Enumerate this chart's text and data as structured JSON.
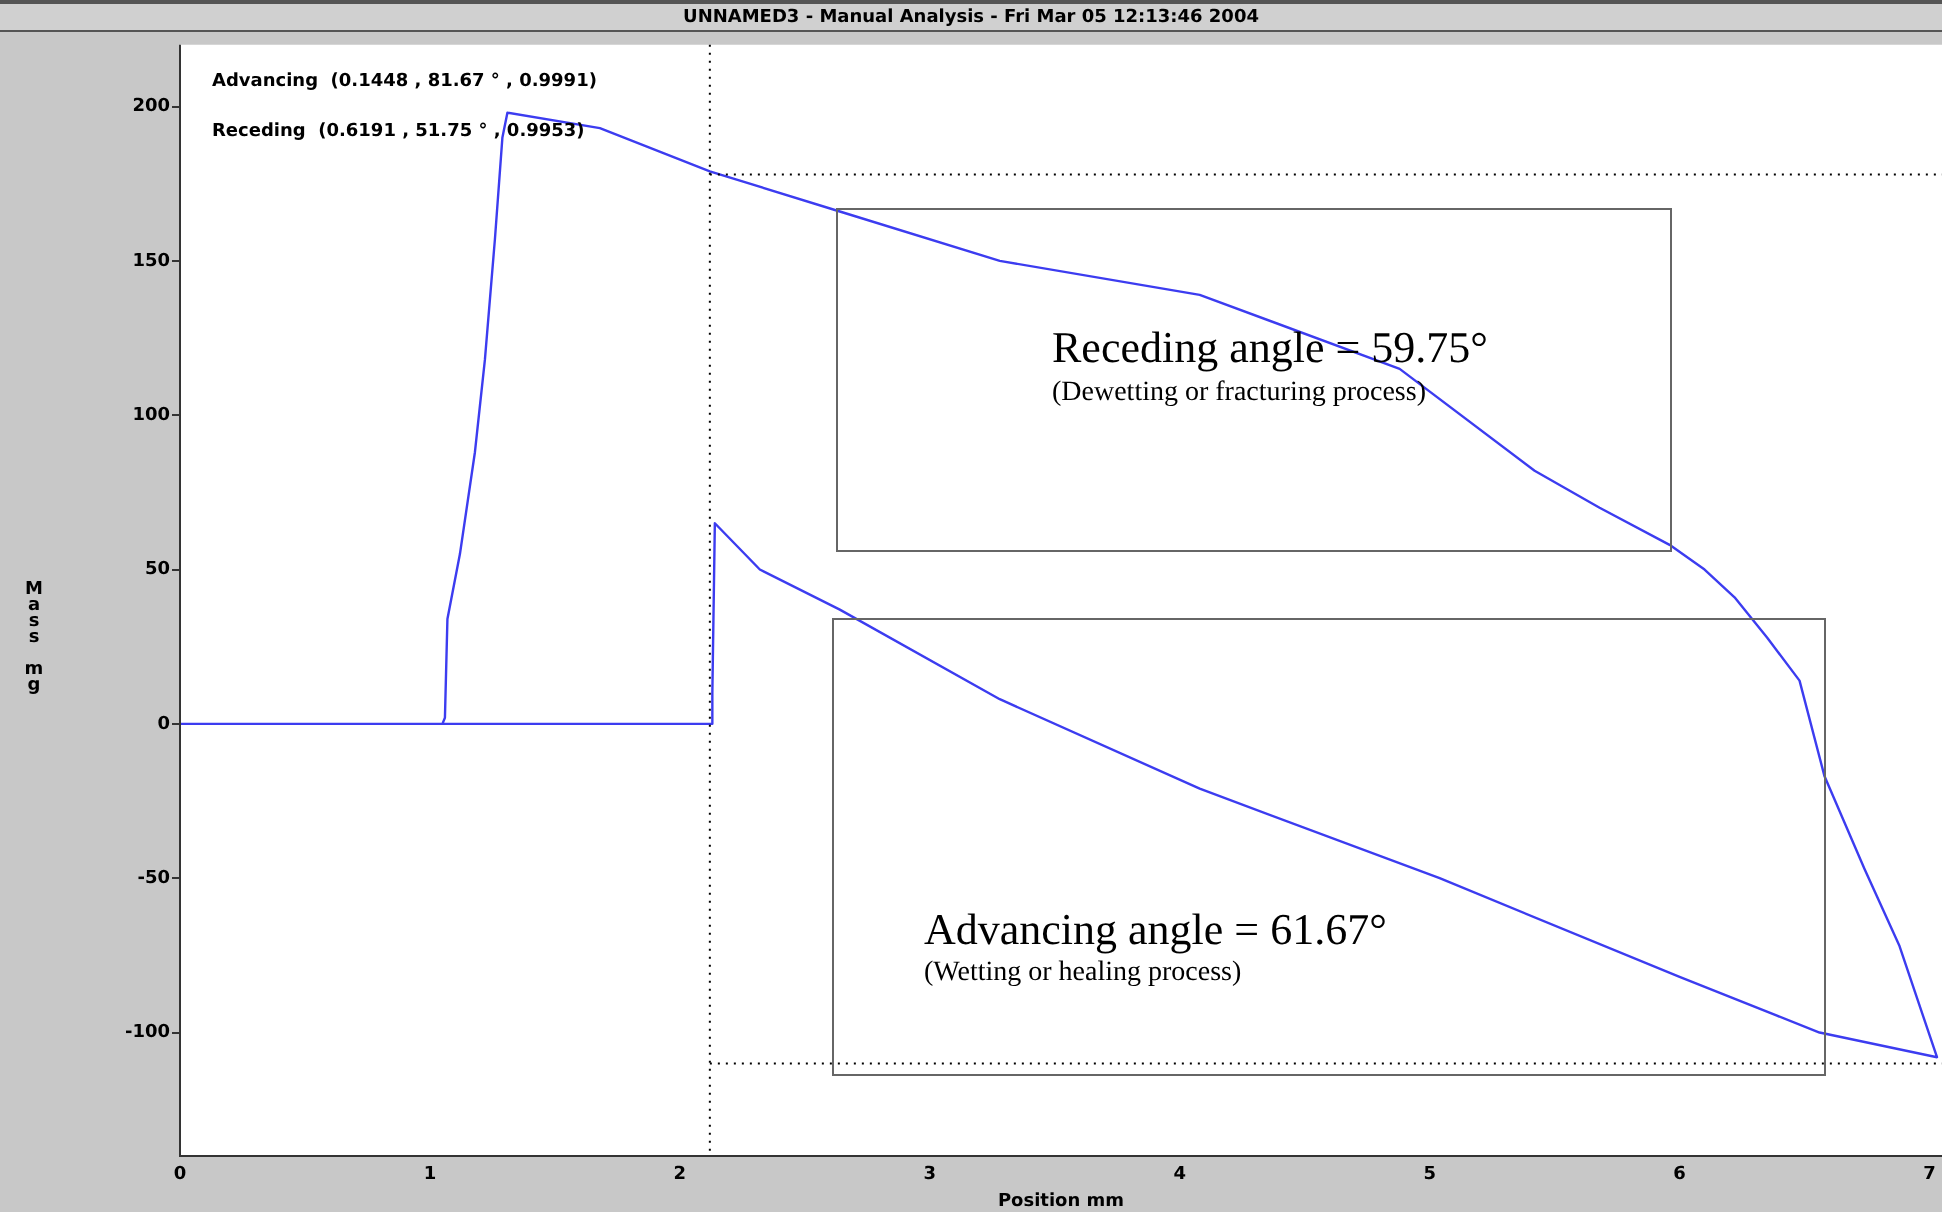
{
  "chart_data": {
    "type": "line",
    "title": "UNNAMED3  -  Manual Analysis  -  Fri Mar 05 12:13:46 2004",
    "xlabel": "Position mm",
    "ylabel": "Mass mg",
    "series": [
      {
        "color": "#3c3cf0",
        "x": [
          0,
          1.05,
          1.06,
          1.07,
          1.12,
          1.18,
          1.22,
          1.26,
          1.29,
          1.31,
          1.68,
          2.12,
          2.64,
          3.28,
          4.08,
          4.88,
          5.42,
          5.68,
          5.96,
          6.1,
          6.22,
          6.35,
          6.48,
          6.58,
          6.74,
          6.88,
          7.03,
          6.56,
          6.0,
          5.04,
          4.08,
          3.28,
          2.64,
          2.32,
          2.14,
          2.13,
          2.13,
          1.05
        ],
        "values": [
          0,
          0,
          2,
          34,
          55,
          88,
          118,
          157,
          190,
          198,
          193,
          179,
          166,
          150,
          139,
          115,
          82,
          70,
          58,
          50,
          41,
          28,
          14,
          -17,
          -47,
          -72,
          -108,
          -100,
          -82,
          -50,
          -21,
          8,
          37,
          50,
          65,
          10,
          0,
          0
        ]
      }
    ],
    "xlim": [
      0,
      7.05
    ],
    "xticks": [
      0,
      1,
      2,
      3,
      4,
      5,
      6,
      7
    ],
    "ylim": [
      -140,
      220
    ],
    "yticks": [
      -100,
      -50,
      0,
      50,
      100,
      150,
      200
    ],
    "grid": false,
    "legend": false,
    "marker": "none",
    "line_style": "solid",
    "ref_lines": [
      {
        "axis": "x",
        "value": 2.12,
        "line_style": "dotted",
        "color": "#000000"
      },
      {
        "axis": "y",
        "value": 178,
        "line_style": "dotted",
        "color": "#000000"
      },
      {
        "axis": "y",
        "value": -110,
        "line_style": "dotted",
        "color": "#000000"
      }
    ],
    "annotations": [
      "Advancing  (0.1448 , 81.67 ° , 0.9991)",
      "Receding  (0.6191 , 51.75 ° , 0.9953)",
      "Receding angle = 59.75°",
      "(Dewetting or fracturing process)",
      "Advancing angle = 61.67°",
      "(Wetting or healing process)"
    ]
  }
}
